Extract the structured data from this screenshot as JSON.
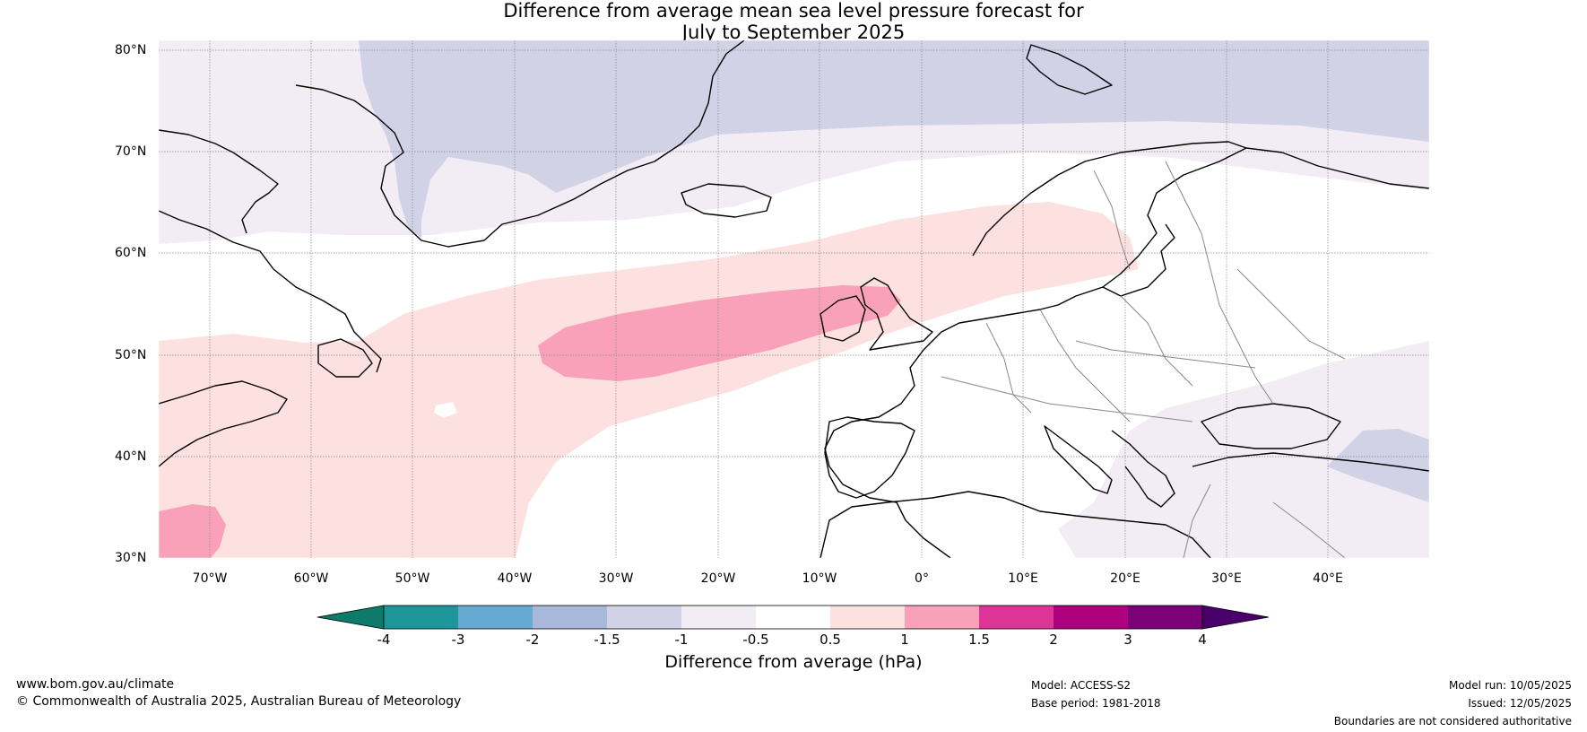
{
  "title": {
    "line1": "Difference from average mean sea level pressure forecast for",
    "line2": "July to September 2025"
  },
  "map": {
    "lat_labels": [
      "80°N",
      "70°N",
      "60°N",
      "50°N",
      "40°N",
      "30°N"
    ],
    "lon_labels": [
      "70°W",
      "60°W",
      "50°W",
      "40°W",
      "30°W",
      "20°W",
      "10°W",
      "0°",
      "10°E",
      "20°E",
      "30°E",
      "40°E"
    ],
    "land_outline_color": "#000000",
    "border_color": "#888888",
    "regions": [
      {
        "name": "Greenland-Arctic low anomaly",
        "class": "-1.5 to -1"
      },
      {
        "name": "Arctic low anomaly",
        "class": "-1 to -0.5"
      },
      {
        "name": "North Atlantic high anomaly",
        "class": "0.5 to 1"
      },
      {
        "name": "Mid-Atlantic / British Isles high anomaly",
        "class": "1 to 1.5"
      },
      {
        "name": "Eastern Mediterranean low anomaly",
        "class": "-1 to -0.5"
      }
    ]
  },
  "colorbar": {
    "ticks": [
      "-4",
      "-3",
      "-2",
      "-1.5",
      "-1",
      "-0.5",
      "0.5",
      "1",
      "1.5",
      "2",
      "3",
      "4"
    ],
    "colors": [
      "#0d7a6a",
      "#1e9599",
      "#66a9d1",
      "#a8b8d8",
      "#d1d2e6",
      "#f2ecf5",
      "#ffffff",
      "#fde0e0",
      "#f9a1b8",
      "#dd3497",
      "#ae017e",
      "#7a0177",
      "#49006a"
    ],
    "label": "Difference from average (hPa)"
  },
  "footer": {
    "website": "www.bom.gov.au/climate",
    "copyright": "© Commonwealth of Australia 2025, Australian Bureau of Meteorology",
    "model": "Model: ACCESS-S2",
    "base_period": "Base period: 1981-2018",
    "model_run": "Model run: 10/05/2025",
    "issued": "Issued: 12/05/2025",
    "disclaimer": "Boundaries are not considered authoritative"
  }
}
